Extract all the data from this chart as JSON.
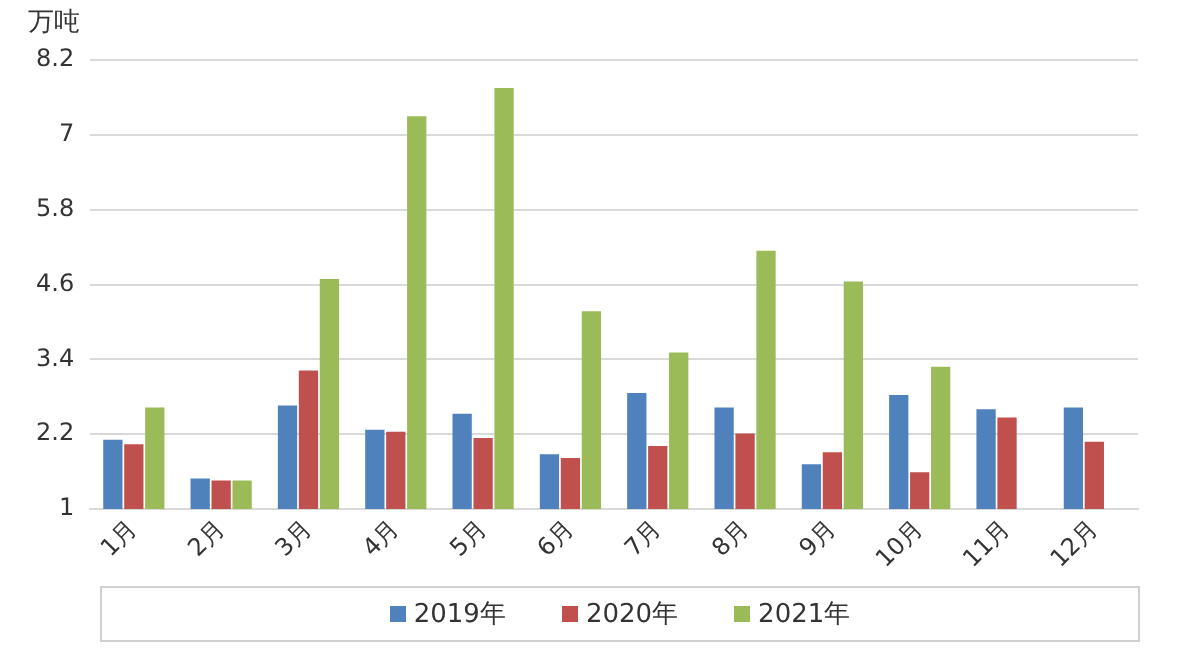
{
  "chart_data": {
    "type": "bar",
    "ylabel": "万吨",
    "categories": [
      "1月",
      "2月",
      "3月",
      "4月",
      "5月",
      "6月",
      "7月",
      "8月",
      "9月",
      "10月",
      "11月",
      "12月"
    ],
    "series": [
      {
        "name": "2019年",
        "color": "#4f81bd",
        "values": [
          2.11,
          1.49,
          2.66,
          2.27,
          2.53,
          1.88,
          2.86,
          2.63,
          1.72,
          2.83,
          2.6,
          2.63
        ]
      },
      {
        "name": "2020年",
        "color": "#c0504d",
        "values": [
          2.04,
          1.46,
          3.22,
          2.24,
          2.14,
          1.82,
          2.01,
          2.21,
          1.91,
          1.59,
          2.47,
          2.08
        ]
      },
      {
        "name": "2021年",
        "color": "#9bbb59",
        "values": [
          2.63,
          1.46,
          4.69,
          7.3,
          7.75,
          4.17,
          3.51,
          5.14,
          4.65,
          3.28,
          null,
          null
        ]
      }
    ],
    "ylim": [
      1,
      8.2
    ],
    "yticks": [
      1,
      2.2,
      3.4,
      4.6,
      5.8,
      7,
      8.2
    ],
    "grid": "y",
    "legend": "bottom"
  }
}
